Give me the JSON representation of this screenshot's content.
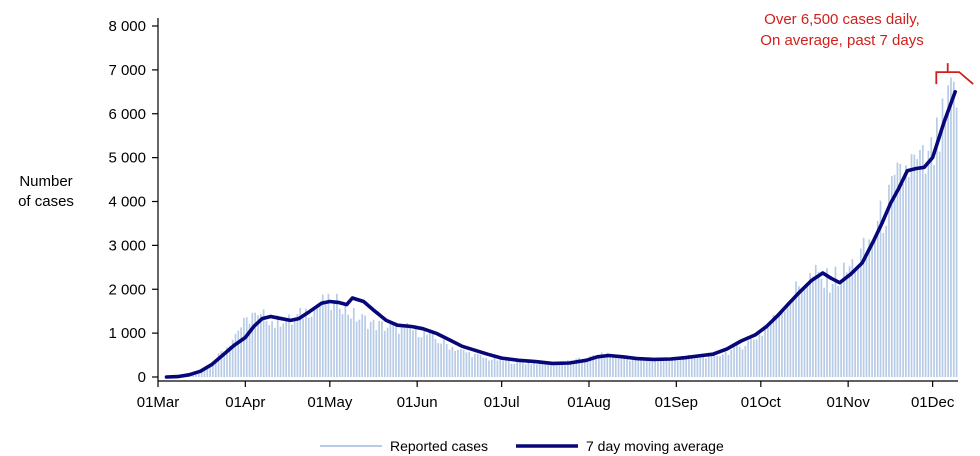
{
  "chart_data": {
    "type": "bar",
    "ylabel_lines": [
      "Number",
      "of cases"
    ],
    "y_ticks": [
      0,
      1000,
      2000,
      3000,
      4000,
      5000,
      6000,
      7000,
      8000
    ],
    "y_tick_labels": [
      "0",
      "1 000",
      "2 000",
      "3 000",
      "4 000",
      "5 000",
      "6 000",
      "7 000",
      "8 000"
    ],
    "ylim": [
      0,
      8000
    ],
    "x_tick_labels": [
      "01Mar",
      "01Apr",
      "01May",
      "01Jun",
      "01Jul",
      "01Aug",
      "01Sep",
      "01Oct",
      "01Nov",
      "01Dec"
    ],
    "x_tick_dates": [
      "03-01",
      "04-01",
      "05-01",
      "06-01",
      "07-01",
      "08-01",
      "09-01",
      "10-01",
      "11-01",
      "12-01"
    ],
    "x_range": [
      "03-01",
      "12-09"
    ],
    "annotation_lines": [
      "Over 6,500 cases daily,",
      "On average, past 7 days"
    ],
    "legend": {
      "position": "bottom"
    },
    "colors": {
      "bars": "#b7cbe6",
      "average": "#07077a",
      "annotation": "#d0201c",
      "axis": "#000000"
    },
    "series": [
      {
        "name": "Reported cases",
        "kind": "bar",
        "daily_points": [
          [
            "03-01",
            0
          ],
          [
            "03-10",
            10
          ],
          [
            "03-13",
            40
          ],
          [
            "03-15",
            80
          ],
          [
            "03-17",
            150
          ],
          [
            "03-19",
            260
          ],
          [
            "03-21",
            420
          ],
          [
            "03-23",
            600
          ],
          [
            "03-25",
            720
          ],
          [
            "03-27",
            880
          ],
          [
            "03-29",
            1100
          ],
          [
            "04-01",
            1250
          ],
          [
            "04-03",
            1450
          ],
          [
            "04-05",
            1300
          ],
          [
            "04-08",
            1420
          ],
          [
            "04-11",
            1200
          ],
          [
            "04-14",
            1350
          ],
          [
            "04-17",
            1250
          ],
          [
            "04-20",
            1400
          ],
          [
            "04-23",
            1550
          ],
          [
            "04-26",
            1650
          ],
          [
            "04-29",
            1700
          ],
          [
            "05-02",
            1600
          ],
          [
            "05-04",
            1750
          ],
          [
            "05-07",
            1500
          ],
          [
            "05-10",
            1350
          ],
          [
            "05-13",
            1300
          ],
          [
            "05-16",
            1200
          ],
          [
            "05-20",
            1150
          ],
          [
            "05-24",
            1120
          ],
          [
            "05-28",
            1100
          ],
          [
            "06-01",
            1050
          ],
          [
            "06-04",
            960
          ],
          [
            "06-08",
            830
          ],
          [
            "06-12",
            710
          ],
          [
            "06-16",
            600
          ],
          [
            "06-20",
            520
          ],
          [
            "06-25",
            420
          ],
          [
            "07-01",
            380
          ],
          [
            "07-05",
            340
          ],
          [
            "07-10",
            320
          ],
          [
            "07-15",
            330
          ],
          [
            "07-20",
            300
          ],
          [
            "07-25",
            360
          ],
          [
            "07-31",
            420
          ],
          [
            "08-03",
            480
          ],
          [
            "08-07",
            500
          ],
          [
            "08-12",
            440
          ],
          [
            "08-18",
            400
          ],
          [
            "08-24",
            380
          ],
          [
            "08-30",
            400
          ],
          [
            "09-05",
            450
          ],
          [
            "09-10",
            480
          ],
          [
            "09-15",
            500
          ],
          [
            "09-20",
            600
          ],
          [
            "09-25",
            760
          ],
          [
            "10-01",
            1000
          ],
          [
            "10-05",
            1300
          ],
          [
            "10-08",
            1600
          ],
          [
            "10-12",
            1900
          ],
          [
            "10-16",
            2200
          ],
          [
            "10-20",
            2300
          ],
          [
            "10-23",
            2150
          ],
          [
            "10-26",
            2250
          ],
          [
            "10-30",
            2350
          ],
          [
            "11-03",
            2600
          ],
          [
            "11-07",
            2900
          ],
          [
            "11-10",
            3300
          ],
          [
            "11-13",
            3700
          ],
          [
            "11-16",
            4100
          ],
          [
            "11-19",
            4500
          ],
          [
            "11-22",
            4800
          ],
          [
            "11-26",
            4750
          ],
          [
            "11-29",
            4800
          ],
          [
            "12-01",
            5100
          ],
          [
            "12-03",
            5400
          ],
          [
            "12-05",
            5800
          ],
          [
            "12-07",
            6200
          ],
          [
            "12-09",
            6500
          ]
        ]
      },
      {
        "name": "7 day moving average",
        "kind": "line",
        "points": [
          [
            "03-04",
            0
          ],
          [
            "03-08",
            10
          ],
          [
            "03-12",
            50
          ],
          [
            "03-16",
            130
          ],
          [
            "03-20",
            280
          ],
          [
            "03-24",
            500
          ],
          [
            "03-28",
            720
          ],
          [
            "04-01",
            900
          ],
          [
            "04-04",
            1150
          ],
          [
            "04-07",
            1330
          ],
          [
            "04-10",
            1380
          ],
          [
            "04-13",
            1340
          ],
          [
            "04-17",
            1290
          ],
          [
            "04-20",
            1330
          ],
          [
            "04-24",
            1500
          ],
          [
            "04-28",
            1680
          ],
          [
            "05-01",
            1720
          ],
          [
            "05-04",
            1700
          ],
          [
            "05-07",
            1650
          ],
          [
            "05-09",
            1800
          ],
          [
            "05-13",
            1720
          ],
          [
            "05-17",
            1500
          ],
          [
            "05-21",
            1290
          ],
          [
            "05-25",
            1180
          ],
          [
            "05-30",
            1150
          ],
          [
            "06-03",
            1100
          ],
          [
            "06-08",
            990
          ],
          [
            "06-13",
            830
          ],
          [
            "06-17",
            700
          ],
          [
            "06-21",
            620
          ],
          [
            "06-26",
            520
          ],
          [
            "07-01",
            430
          ],
          [
            "07-07",
            380
          ],
          [
            "07-13",
            350
          ],
          [
            "07-19",
            310
          ],
          [
            "07-25",
            320
          ],
          [
            "07-31",
            380
          ],
          [
            "08-04",
            460
          ],
          [
            "08-08",
            490
          ],
          [
            "08-13",
            460
          ],
          [
            "08-18",
            420
          ],
          [
            "08-24",
            400
          ],
          [
            "08-30",
            410
          ],
          [
            "09-04",
            440
          ],
          [
            "09-09",
            480
          ],
          [
            "09-14",
            520
          ],
          [
            "09-19",
            640
          ],
          [
            "09-24",
            820
          ],
          [
            "09-29",
            960
          ],
          [
            "10-03",
            1150
          ],
          [
            "10-07",
            1400
          ],
          [
            "10-11",
            1680
          ],
          [
            "10-15",
            1950
          ],
          [
            "10-19",
            2200
          ],
          [
            "10-23",
            2370
          ],
          [
            "10-26",
            2250
          ],
          [
            "10-29",
            2150
          ],
          [
            "11-02",
            2350
          ],
          [
            "11-06",
            2600
          ],
          [
            "11-10",
            3100
          ],
          [
            "11-13",
            3500
          ],
          [
            "11-16",
            3950
          ],
          [
            "11-19",
            4300
          ],
          [
            "11-22",
            4700
          ],
          [
            "11-25",
            4750
          ],
          [
            "11-28",
            4780
          ],
          [
            "12-01",
            5000
          ],
          [
            "12-03",
            5400
          ],
          [
            "12-05",
            5800
          ],
          [
            "12-07",
            6150
          ],
          [
            "12-09",
            6500
          ]
        ]
      }
    ]
  }
}
